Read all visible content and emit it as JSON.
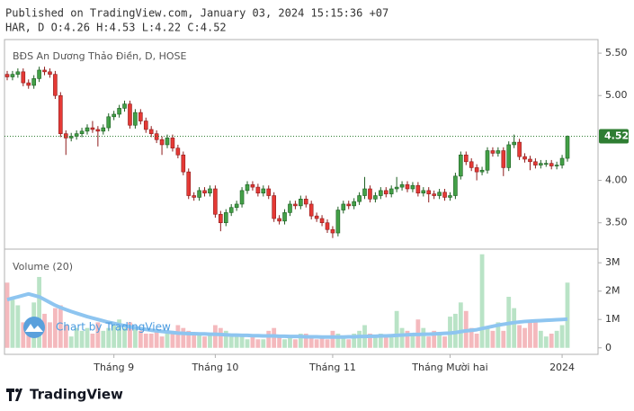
{
  "header": "Published on TradingView.com, January 03, 2024 15:15:36 +07",
  "watermark": "Chart by TradingView",
  "footer_logo": "TradingView",
  "chart_data": [
    {
      "type": "candlestick",
      "title": "BĐS An Dương Thảo Điền, D, HOSE",
      "subtitle": "HAR, D O:4.26 H:4.53 L:4.22 C:4.52",
      "up_color": "#43a047",
      "down_color": "#e53935",
      "up_border": "#1b5e20",
      "down_border": "#8e1b1b",
      "open": [
        5.25,
        5.22,
        5.25,
        5.28,
        5.15,
        5.12,
        5.2,
        5.3,
        5.28,
        5.25,
        5.0,
        4.55,
        4.5,
        4.52,
        4.55,
        4.58,
        4.62,
        4.6,
        4.58,
        4.62,
        4.75,
        4.78,
        4.85,
        4.9,
        4.65,
        4.8,
        4.7,
        4.6,
        4.55,
        4.48,
        4.42,
        4.5,
        4.38,
        4.3,
        4.1,
        3.82,
        3.8,
        3.88,
        3.85,
        3.9,
        3.6,
        3.5,
        3.62,
        3.68,
        3.72,
        3.88,
        3.95,
        3.92,
        3.85,
        3.9,
        3.82,
        3.55,
        3.52,
        3.62,
        3.72,
        3.7,
        3.78,
        3.72,
        3.58,
        3.55,
        3.5,
        3.42,
        3.38,
        3.65,
        3.72,
        3.7,
        3.75,
        3.82,
        3.9,
        3.78,
        3.82,
        3.88,
        3.84,
        3.9,
        3.92,
        3.95,
        3.9,
        3.94,
        3.85,
        3.88,
        3.84,
        3.82,
        3.86,
        3.8,
        3.82,
        4.05,
        4.3,
        4.22,
        4.15,
        4.1,
        4.12,
        4.35,
        4.32,
        4.35,
        4.15,
        4.42,
        4.45,
        4.28,
        4.25,
        4.22,
        4.18,
        4.2,
        4.2,
        4.17,
        4.18,
        4.26
      ],
      "high": [
        5.29,
        5.29,
        5.32,
        5.32,
        5.19,
        5.24,
        5.34,
        5.34,
        5.32,
        5.29,
        5.04,
        4.59,
        4.56,
        4.59,
        4.62,
        4.66,
        4.7,
        4.64,
        4.66,
        4.79,
        4.82,
        4.89,
        4.94,
        4.94,
        4.84,
        4.84,
        4.74,
        4.64,
        4.59,
        4.52,
        4.54,
        4.54,
        4.42,
        4.34,
        4.14,
        3.86,
        3.92,
        3.92,
        3.94,
        3.94,
        3.64,
        3.66,
        3.72,
        3.76,
        3.92,
        3.99,
        3.99,
        3.96,
        3.94,
        3.94,
        3.86,
        3.59,
        3.66,
        3.76,
        3.76,
        3.82,
        3.82,
        3.76,
        3.62,
        3.59,
        3.54,
        3.46,
        3.69,
        3.76,
        3.76,
        3.79,
        3.86,
        4.04,
        3.94,
        3.86,
        3.92,
        3.92,
        3.94,
        4.04,
        3.99,
        3.99,
        3.98,
        3.98,
        3.92,
        3.92,
        3.88,
        3.9,
        3.9,
        3.86,
        4.09,
        4.34,
        4.34,
        4.26,
        4.19,
        4.16,
        4.39,
        4.39,
        4.39,
        4.39,
        4.46,
        4.54,
        4.49,
        4.32,
        4.29,
        4.26,
        4.24,
        4.24,
        4.24,
        4.22,
        4.3,
        4.53
      ],
      "low": [
        5.18,
        5.18,
        5.21,
        5.11,
        5.08,
        5.08,
        5.16,
        5.24,
        5.21,
        4.96,
        4.51,
        4.3,
        4.46,
        4.48,
        4.51,
        4.54,
        4.56,
        4.4,
        4.54,
        4.58,
        4.71,
        4.74,
        4.81,
        4.61,
        4.61,
        4.66,
        4.56,
        4.51,
        4.44,
        4.3,
        4.38,
        4.34,
        4.26,
        4.06,
        3.78,
        3.76,
        3.76,
        3.81,
        3.81,
        3.56,
        3.4,
        3.46,
        3.58,
        3.64,
        3.68,
        3.84,
        3.88,
        3.81,
        3.81,
        3.78,
        3.51,
        3.48,
        3.48,
        3.58,
        3.66,
        3.66,
        3.68,
        3.54,
        3.51,
        3.46,
        3.38,
        3.32,
        3.34,
        3.61,
        3.66,
        3.66,
        3.71,
        3.78,
        3.74,
        3.74,
        3.78,
        3.8,
        3.8,
        3.86,
        3.88,
        3.86,
        3.86,
        3.81,
        3.81,
        3.74,
        3.78,
        3.78,
        3.76,
        3.76,
        3.78,
        4.01,
        4.18,
        4.11,
        4.0,
        4.06,
        4.08,
        4.28,
        4.28,
        4.05,
        4.11,
        4.38,
        4.24,
        4.21,
        4.12,
        4.14,
        4.14,
        4.16,
        4.13,
        4.13,
        4.14,
        4.22
      ],
      "close": [
        5.22,
        5.25,
        5.28,
        5.15,
        5.12,
        5.2,
        5.3,
        5.28,
        5.25,
        5.0,
        4.55,
        4.5,
        4.52,
        4.55,
        4.58,
        4.62,
        4.6,
        4.58,
        4.62,
        4.75,
        4.78,
        4.85,
        4.9,
        4.65,
        4.8,
        4.7,
        4.6,
        4.55,
        4.48,
        4.42,
        4.5,
        4.38,
        4.3,
        4.1,
        3.82,
        3.8,
        3.88,
        3.85,
        3.9,
        3.6,
        3.5,
        3.62,
        3.68,
        3.72,
        3.88,
        3.95,
        3.92,
        3.85,
        3.9,
        3.82,
        3.55,
        3.52,
        3.62,
        3.72,
        3.7,
        3.78,
        3.72,
        3.58,
        3.55,
        3.5,
        3.42,
        3.38,
        3.65,
        3.72,
        3.7,
        3.75,
        3.82,
        3.9,
        3.78,
        3.82,
        3.88,
        3.84,
        3.9,
        3.92,
        3.95,
        3.9,
        3.94,
        3.85,
        3.88,
        3.84,
        3.82,
        3.86,
        3.8,
        3.82,
        4.05,
        4.3,
        4.22,
        4.15,
        4.1,
        4.12,
        4.35,
        4.32,
        4.35,
        4.15,
        4.42,
        4.45,
        4.28,
        4.25,
        4.22,
        4.18,
        4.2,
        4.2,
        4.17,
        4.18,
        4.26,
        4.52
      ],
      "ylim": [
        3.2,
        5.66
      ],
      "yticks": [
        {
          "value": 5.5,
          "label": "5.50"
        },
        {
          "value": 5.0,
          "label": "5.00"
        },
        {
          "value": 4.0,
          "label": "4.00"
        },
        {
          "value": 3.5,
          "label": "3.50"
        }
      ],
      "last_price_color": "#2e7d32"
    },
    {
      "type": "bar",
      "title": "Volume (20)",
      "categories": [
        null,
        null,
        null,
        null,
        null,
        null,
        null,
        null,
        null,
        null,
        null,
        null,
        null,
        null,
        null,
        null,
        null,
        null,
        null,
        null,
        "Tháng 9",
        null,
        null,
        null,
        null,
        null,
        null,
        null,
        null,
        null,
        null,
        null,
        null,
        null,
        null,
        null,
        null,
        null,
        null,
        "Tháng 10",
        null,
        null,
        null,
        null,
        null,
        null,
        null,
        null,
        null,
        null,
        null,
        null,
        null,
        null,
        null,
        null,
        null,
        null,
        null,
        null,
        null,
        "Tháng 11",
        null,
        null,
        null,
        null,
        null,
        null,
        null,
        null,
        null,
        null,
        null,
        null,
        null,
        null,
        null,
        null,
        null,
        null,
        null,
        null,
        null,
        "Tháng Mười hai",
        null,
        null,
        null,
        null,
        null,
        null,
        null,
        null,
        null,
        null,
        null,
        null,
        null,
        null,
        null,
        null,
        null,
        null,
        null,
        null,
        "2024",
        null
      ],
      "values": [
        2300000,
        1700000,
        1500000,
        900000,
        800000,
        1600000,
        2500000,
        1200000,
        900000,
        1400000,
        1500000,
        800000,
        400000,
        700000,
        600000,
        700000,
        500000,
        900000,
        600000,
        700000,
        800000,
        1000000,
        700000,
        900000,
        700000,
        600000,
        500000,
        500000,
        600000,
        400000,
        500000,
        600000,
        800000,
        700000,
        600000,
        500000,
        500000,
        400000,
        500000,
        800000,
        700000,
        600000,
        500000,
        400000,
        500000,
        300000,
        400000,
        300000,
        300000,
        600000,
        700000,
        400000,
        300000,
        400000,
        300000,
        500000,
        500000,
        400000,
        300000,
        400000,
        300000,
        600000,
        500000,
        400000,
        300000,
        500000,
        600000,
        800000,
        500000,
        400000,
        500000,
        400000,
        400000,
        1300000,
        700000,
        600000,
        500000,
        1000000,
        700000,
        400000,
        600000,
        500000,
        400000,
        1100000,
        1200000,
        1600000,
        1300000,
        700000,
        500000,
        3300000,
        700000,
        600000,
        900000,
        600000,
        1800000,
        1400000,
        800000,
        700000,
        900000,
        1000000,
        600000,
        400000,
        500000,
        600000,
        800000,
        2300000
      ],
      "ma_values": [
        1700000,
        1750000,
        1800000,
        1850000,
        1900000,
        1850000,
        1800000,
        1700000,
        1600000,
        1500000,
        1420000,
        1350000,
        1280000,
        1220000,
        1160000,
        1100000,
        1050000,
        1000000,
        950000,
        900000,
        860000,
        820000,
        780000,
        740000,
        710000,
        680000,
        650000,
        620000,
        600000,
        580000,
        560000,
        540000,
        520000,
        510000,
        500000,
        500000,
        490000,
        490000,
        480000,
        480000,
        470000,
        460000,
        450000,
        450000,
        440000,
        440000,
        430000,
        430000,
        420000,
        420000,
        420000,
        410000,
        410000,
        400000,
        400000,
        400000,
        390000,
        390000,
        390000,
        380000,
        380000,
        380000,
        380000,
        380000,
        390000,
        390000,
        400000,
        400000,
        410000,
        410000,
        420000,
        420000,
        430000,
        440000,
        450000,
        460000,
        470000,
        470000,
        480000,
        480000,
        490000,
        500000,
        510000,
        520000,
        540000,
        570000,
        600000,
        620000,
        640000,
        680000,
        720000,
        760000,
        800000,
        830000,
        860000,
        890000,
        910000,
        930000,
        940000,
        950000,
        960000,
        970000,
        980000,
        990000,
        1000000,
        1010000
      ],
      "up_color": "#b9e3c6",
      "down_color": "#f4b9bd",
      "ma_color": "#8ec5f0",
      "ylim": [
        -230000,
        3450000
      ],
      "yticks": [
        0,
        {
          "value": 1000000,
          "label": "1M"
        },
        {
          "value": 2000000,
          "label": "2M"
        },
        {
          "value": 3000000,
          "label": "3M"
        }
      ]
    }
  ]
}
